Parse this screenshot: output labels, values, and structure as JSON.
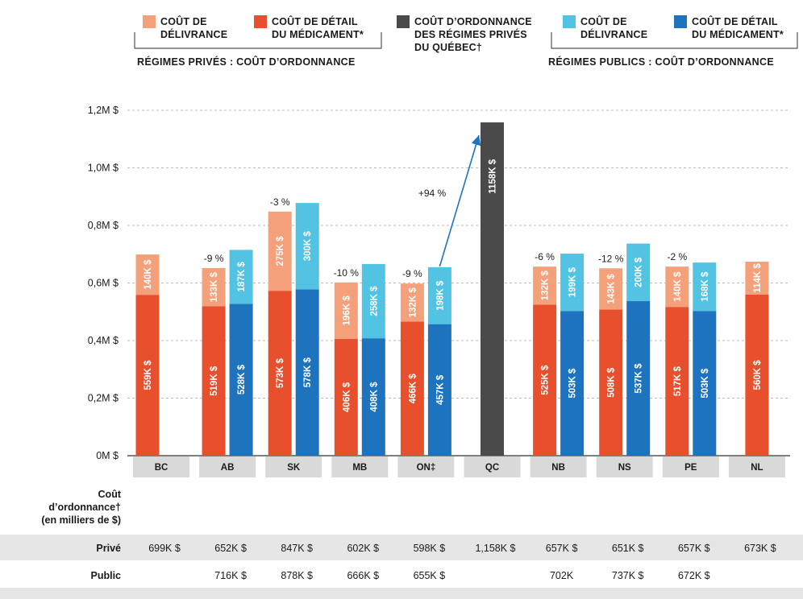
{
  "legend": {
    "private_group_title": "RÉGIMES PRIVÉS : COÛT D’ORDONNANCE",
    "public_group_title": "RÉGIMES PUBLICS : COÛT D’ORDONNANCE",
    "items": [
      {
        "key": "priv_disp",
        "lines": [
          "COÛT DE",
          "DÉLIVRANCE"
        ],
        "color": "#F4A07A"
      },
      {
        "key": "priv_drug",
        "lines": [
          "COÛT DE DÉTAIL",
          "DU MÉDICAMENT*"
        ],
        "color": "#E8502D"
      },
      {
        "key": "qc",
        "lines": [
          "COÛT D’ORDONNANCE",
          "DES RÉGIMES PRIVÉS",
          "DU QUÉBEC†"
        ],
        "color": "#4A4A4A"
      },
      {
        "key": "pub_disp",
        "lines": [
          "COÛT DE",
          "DÉLIVRANCE"
        ],
        "color": "#52C3E2"
      },
      {
        "key": "pub_drug",
        "lines": [
          "COÛT DE DÉTAIL",
          "DU MÉDICAMENT*"
        ],
        "color": "#1E73BE"
      }
    ]
  },
  "table": {
    "header_lines": [
      "Coût",
      "d’ordonnance†",
      "(en milliers de $)"
    ],
    "private_label": "Privé",
    "public_label": "Public",
    "private_values": [
      "699K $",
      "652K $",
      "847K $",
      "602K $",
      "598K $",
      "1,158K $",
      "657K $",
      "651K $",
      "657K $",
      "673K $"
    ],
    "public_values": [
      "",
      "716K $",
      "878K $",
      "666K $",
      "655K $",
      "",
      "702K",
      "737K $",
      "672K $",
      ""
    ]
  },
  "chart_data": {
    "type": "bar",
    "stacked": true,
    "title": "",
    "xlabel": "",
    "ylabel": "",
    "ylim": [
      0,
      1.2
    ],
    "yticks": [
      0,
      0.2,
      0.4,
      0.6,
      0.8,
      1.0,
      1.2
    ],
    "ytick_labels": [
      "0M $",
      "0,2M $",
      "0,4M $",
      "0,6M $",
      "0,8M $",
      "1,0M $",
      "1,2M $"
    ],
    "grid": "horizontal dashed",
    "categories": [
      "BC",
      "AB",
      "SK",
      "MB",
      "ON‡",
      "QC",
      "NB",
      "NS",
      "PE",
      "NL"
    ],
    "colors": {
      "priv_disp": "#F4A07A",
      "priv_drug": "#E8502D",
      "qc": "#4A4A4A",
      "pub_disp": "#52C3E2",
      "pub_drug": "#1E73BE",
      "cat_box": "#D9D9D9",
      "arrow": "#1E73BE",
      "grid": "#BBBBBB"
    },
    "bars": [
      {
        "category": "BC",
        "stack": [
          {
            "series": "priv_drug",
            "value": 0.559,
            "label": "559K $"
          },
          {
            "series": "priv_disp",
            "value": 0.14,
            "label": "140K $"
          }
        ]
      },
      {
        "category": "BC",
        "stack": [
          {
            "series": "pub_drug",
            "value": 0,
            "label": ""
          },
          {
            "series": "pub_disp",
            "value": 0,
            "label": ""
          }
        ]
      },
      {
        "category": "AB",
        "stack": [
          {
            "series": "priv_drug",
            "value": 0.519,
            "label": "519K $"
          },
          {
            "series": "priv_disp",
            "value": 0.133,
            "label": "133K $"
          }
        ]
      },
      {
        "category": "AB",
        "stack": [
          {
            "series": "pub_drug",
            "value": 0.528,
            "label": "528K $"
          },
          {
            "series": "pub_disp",
            "value": 0.187,
            "label": "187K $"
          }
        ]
      },
      {
        "category": "SK",
        "stack": [
          {
            "series": "priv_drug",
            "value": 0.573,
            "label": "573K $"
          },
          {
            "series": "priv_disp",
            "value": 0.275,
            "label": "275K $"
          }
        ]
      },
      {
        "category": "SK",
        "stack": [
          {
            "series": "pub_drug",
            "value": 0.578,
            "label": "578K $"
          },
          {
            "series": "pub_disp",
            "value": 0.3,
            "label": "300K $"
          }
        ]
      },
      {
        "category": "MB",
        "stack": [
          {
            "series": "priv_drug",
            "value": 0.406,
            "label": "406K $"
          },
          {
            "series": "priv_disp",
            "value": 0.196,
            "label": "196K $"
          }
        ]
      },
      {
        "category": "MB",
        "stack": [
          {
            "series": "pub_drug",
            "value": 0.408,
            "label": "408K $"
          },
          {
            "series": "pub_disp",
            "value": 0.258,
            "label": "258K $"
          }
        ]
      },
      {
        "category": "ON‡",
        "stack": [
          {
            "series": "priv_drug",
            "value": 0.466,
            "label": "466K $"
          },
          {
            "series": "priv_disp",
            "value": 0.132,
            "label": "132K $"
          }
        ]
      },
      {
        "category": "ON‡",
        "stack": [
          {
            "series": "pub_drug",
            "value": 0.457,
            "label": "457K $"
          },
          {
            "series": "pub_disp",
            "value": 0.198,
            "label": "198K $"
          }
        ]
      },
      {
        "category": "QC",
        "stack": [
          {
            "series": "qc",
            "value": 1.158,
            "label": "1158K $"
          }
        ]
      },
      {
        "category": "NB",
        "stack": [
          {
            "series": "priv_drug",
            "value": 0.525,
            "label": "525K $"
          },
          {
            "series": "priv_disp",
            "value": 0.132,
            "label": "132K $"
          }
        ]
      },
      {
        "category": "NB",
        "stack": [
          {
            "series": "pub_drug",
            "value": 0.503,
            "label": "503K $"
          },
          {
            "series": "pub_disp",
            "value": 0.199,
            "label": "199K $"
          }
        ]
      },
      {
        "category": "NS",
        "stack": [
          {
            "series": "priv_drug",
            "value": 0.508,
            "label": "508K $"
          },
          {
            "series": "priv_disp",
            "value": 0.143,
            "label": "143K $"
          }
        ]
      },
      {
        "category": "NS",
        "stack": [
          {
            "series": "pub_drug",
            "value": 0.537,
            "label": "537K $"
          },
          {
            "series": "pub_disp",
            "value": 0.2,
            "label": "200K $"
          }
        ]
      },
      {
        "category": "PE",
        "stack": [
          {
            "series": "priv_drug",
            "value": 0.517,
            "label": "517K $"
          },
          {
            "series": "priv_disp",
            "value": 0.14,
            "label": "140K $"
          }
        ]
      },
      {
        "category": "PE",
        "stack": [
          {
            "series": "pub_drug",
            "value": 0.503,
            "label": "503K $"
          },
          {
            "series": "pub_disp",
            "value": 0.168,
            "label": "168K $"
          }
        ]
      },
      {
        "category": "NL",
        "stack": [
          {
            "series": "priv_drug",
            "value": 0.56,
            "label": "560K $"
          },
          {
            "series": "priv_disp",
            "value": 0.114,
            "label": "114K $"
          }
        ]
      }
    ],
    "annotations": [
      {
        "category": "AB",
        "text": "-9 %"
      },
      {
        "category": "SK",
        "text": "-3 %"
      },
      {
        "category": "MB",
        "text": "-10 %"
      },
      {
        "category": "ON‡",
        "text": "-9 %"
      },
      {
        "category": "NB",
        "text": "-6 %"
      },
      {
        "category": "NS",
        "text": "-12 %"
      },
      {
        "category": "PE",
        "text": "-2 %"
      }
    ],
    "arrow_annotation": {
      "from_category": "ON‡",
      "to_category": "QC",
      "text": "+94 %"
    }
  }
}
